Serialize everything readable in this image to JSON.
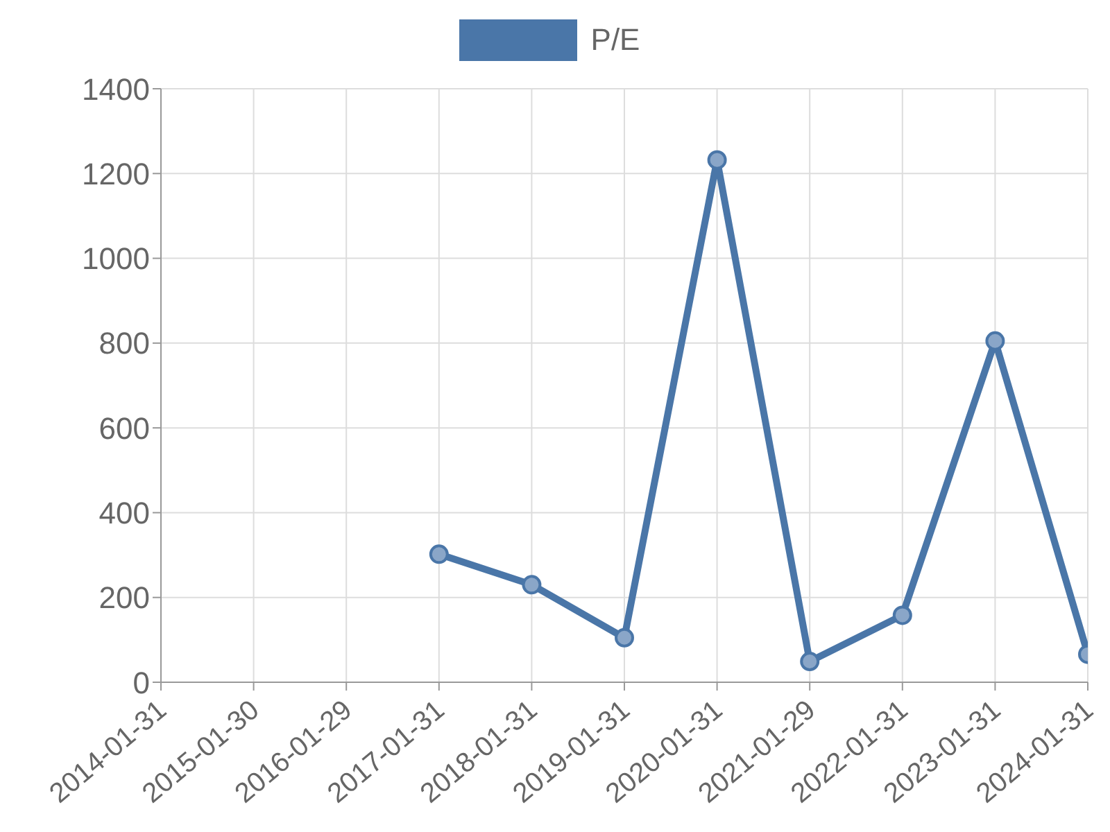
{
  "chart_data": {
    "type": "line",
    "categories": [
      "2014-01-31",
      "2015-01-30",
      "2016-01-29",
      "2017-01-31",
      "2018-01-31",
      "2019-01-31",
      "2020-01-31",
      "2021-01-29",
      "2022-01-31",
      "2023-01-31",
      "2024-01-31"
    ],
    "series": [
      {
        "name": "P/E",
        "color": "#4a76a8",
        "values": [
          null,
          null,
          null,
          302,
          230,
          105,
          1232,
          49,
          158,
          805,
          66
        ]
      }
    ],
    "ylim": [
      0,
      1400
    ],
    "yticks": [
      0,
      200,
      400,
      600,
      800,
      1000,
      1200,
      1400
    ],
    "grid": true,
    "legend": "top",
    "marker": "circle",
    "line_style": "solid"
  }
}
